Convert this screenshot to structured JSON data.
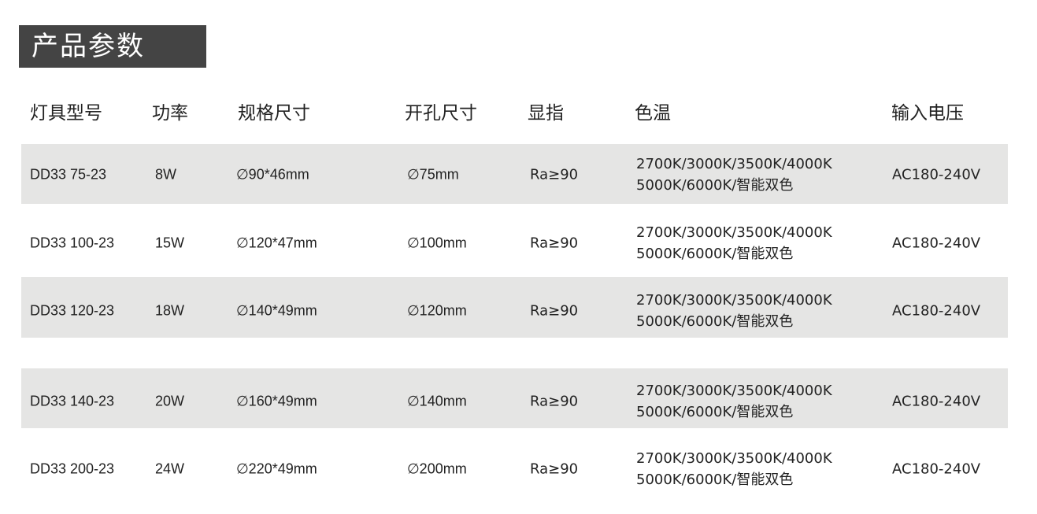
{
  "title": "产品参数",
  "headers": [
    "灯具型号",
    "功率",
    "规格尺寸",
    "开孔尺寸",
    "显指",
    "色温",
    "输入电压"
  ],
  "rows": [
    {
      "model": "DD33 75-23",
      "power": "8W",
      "size": "∅90*46mm",
      "hole": "∅75mm",
      "ra": "Ra≥90",
      "temp1": "2700K/3000K/3500K/4000K",
      "temp2": "5000K/6000K/智能双色",
      "voltage": "AC180-240V"
    },
    {
      "model": "DD33 100-23",
      "power": "15W",
      "size": "∅120*47mm",
      "hole": "∅100mm",
      "ra": "Ra≥90",
      "temp1": "2700K/3000K/3500K/4000K",
      "temp2": "5000K/6000K/智能双色",
      "voltage": "AC180-240V"
    },
    {
      "model": "DD33 120-23",
      "power": "18W",
      "size": "∅140*49mm",
      "hole": "∅120mm",
      "ra": "Ra≥90",
      "temp1": "2700K/3000K/3500K/4000K",
      "temp2": "5000K/6000K/智能双色",
      "voltage": "AC180-240V"
    },
    {
      "model": "DD33 140-23",
      "power": "20W",
      "size": "∅160*49mm",
      "hole": "∅140mm",
      "ra": "Ra≥90",
      "temp1": "2700K/3000K/3500K/4000K",
      "temp2": "5000K/6000K/智能双色",
      "voltage": "AC180-240V"
    },
    {
      "model": "DD33 200-23",
      "power": "24W",
      "size": "∅220*49mm",
      "hole": "∅200mm",
      "ra": "Ra≥90",
      "temp1": "2700K/3000K/3500K/4000K",
      "temp2": "5000K/6000K/智能双色",
      "voltage": "AC180-240V"
    }
  ],
  "colors": {
    "title_bg": "#444444",
    "band": "#e5e5e4"
  }
}
